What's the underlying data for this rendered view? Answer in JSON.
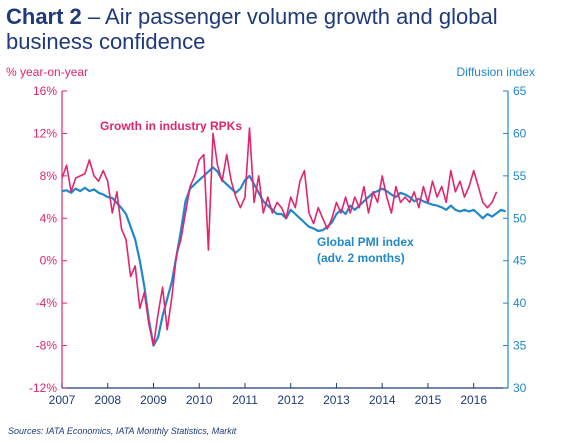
{
  "header": {
    "chart_number": "Chart 2",
    "title_rest": " – Air passenger volume growth and global business confidence"
  },
  "source": "Sources: IATA Economics, IATA Monthly Statistics, Markit",
  "colors": {
    "rpk": "#e0266f",
    "pmi": "#2188c9",
    "title": "#1f3a7a"
  },
  "chart_data": {
    "type": "line",
    "title": "Air passenger volume growth and global business confidence",
    "x_ticks": [
      "2007",
      "2008",
      "2009",
      "2010",
      "2011",
      "2012",
      "2013",
      "2014",
      "2015",
      "2016"
    ],
    "x_range": [
      2007.0,
      2016.75
    ],
    "left_axis": {
      "label": "% year-on-year",
      "range": [
        -12,
        16
      ],
      "ticks": [
        -12,
        -8,
        -4,
        0,
        4,
        8,
        12,
        16
      ],
      "tick_labels": [
        "-12%",
        "-8%",
        "-4%",
        "0%",
        "4%",
        "8%",
        "12%",
        "16%"
      ]
    },
    "right_axis": {
      "label": "Diffusion index",
      "range": [
        30,
        65
      ],
      "ticks": [
        30,
        35,
        40,
        45,
        50,
        55,
        60,
        65
      ],
      "tick_labels": [
        "30",
        "35",
        "40",
        "45",
        "50",
        "55",
        "60",
        "65"
      ]
    },
    "grid": false,
    "series": [
      {
        "name": "Growth in industry RPKs",
        "axis": "left",
        "x": [
          2007.0,
          2007.1,
          2007.2,
          2007.3,
          2007.4,
          2007.5,
          2007.6,
          2007.7,
          2007.8,
          2007.9,
          2008.0,
          2008.1,
          2008.2,
          2008.3,
          2008.4,
          2008.5,
          2008.6,
          2008.7,
          2008.8,
          2008.9,
          2009.0,
          2009.1,
          2009.2,
          2009.3,
          2009.4,
          2009.5,
          2009.6,
          2009.7,
          2009.8,
          2009.9,
          2010.0,
          2010.1,
          2010.2,
          2010.3,
          2010.4,
          2010.5,
          2010.6,
          2010.7,
          2010.8,
          2010.9,
          2011.0,
          2011.1,
          2011.2,
          2011.3,
          2011.4,
          2011.5,
          2011.6,
          2011.7,
          2011.8,
          2011.9,
          2012.0,
          2012.1,
          2012.2,
          2012.3,
          2012.4,
          2012.5,
          2012.6,
          2012.7,
          2012.8,
          2012.9,
          2013.0,
          2013.1,
          2013.2,
          2013.3,
          2013.4,
          2013.5,
          2013.6,
          2013.7,
          2013.8,
          2013.9,
          2014.0,
          2014.1,
          2014.2,
          2014.3,
          2014.4,
          2014.5,
          2014.6,
          2014.7,
          2014.8,
          2014.9,
          2015.0,
          2015.1,
          2015.2,
          2015.3,
          2015.4,
          2015.5,
          2015.6,
          2015.7,
          2015.8,
          2015.9,
          2016.0,
          2016.1,
          2016.2,
          2016.3,
          2016.4,
          2016.5
        ],
        "values": [
          7.8,
          9.0,
          6.5,
          7.8,
          8.0,
          8.2,
          9.5,
          8.0,
          7.5,
          8.5,
          7.5,
          4.5,
          6.5,
          3.0,
          2.0,
          -1.5,
          -0.5,
          -4.5,
          -3.0,
          -6.0,
          -8.0,
          -5.0,
          -2.5,
          -6.5,
          -3.5,
          0.5,
          2.0,
          4.5,
          7.0,
          8.0,
          9.5,
          10.0,
          1.0,
          12.0,
          9.0,
          7.5,
          10.0,
          7.5,
          6.0,
          5.0,
          6.0,
          12.5,
          5.5,
          8.0,
          4.5,
          6.0,
          4.5,
          5.5,
          5.0,
          4.0,
          6.0,
          5.0,
          7.5,
          8.5,
          4.5,
          3.5,
          5.0,
          4.0,
          3.0,
          4.0,
          5.5,
          4.5,
          6.0,
          4.5,
          6.0,
          5.0,
          7.0,
          4.5,
          6.5,
          5.5,
          8.0,
          6.0,
          4.5,
          7.0,
          5.5,
          6.0,
          5.5,
          6.5,
          5.0,
          7.0,
          5.5,
          7.5,
          6.0,
          7.0,
          5.5,
          8.5,
          6.5,
          7.5,
          6.0,
          7.0,
          8.5,
          7.0,
          5.5,
          5.0,
          5.5,
          6.5
        ]
      },
      {
        "name": "Global PMI index\n(adv. 2 months)",
        "axis": "right",
        "x": [
          2007.0,
          2007.1,
          2007.2,
          2007.3,
          2007.4,
          2007.5,
          2007.6,
          2007.7,
          2007.8,
          2007.9,
          2008.0,
          2008.1,
          2008.2,
          2008.3,
          2008.4,
          2008.5,
          2008.6,
          2008.7,
          2008.8,
          2008.9,
          2009.0,
          2009.1,
          2009.2,
          2009.3,
          2009.4,
          2009.5,
          2009.6,
          2009.7,
          2009.8,
          2009.9,
          2010.0,
          2010.1,
          2010.2,
          2010.3,
          2010.4,
          2010.5,
          2010.6,
          2010.7,
          2010.8,
          2010.9,
          2011.0,
          2011.1,
          2011.2,
          2011.3,
          2011.4,
          2011.5,
          2011.6,
          2011.7,
          2011.8,
          2011.9,
          2012.0,
          2012.1,
          2012.2,
          2012.3,
          2012.4,
          2012.5,
          2012.6,
          2012.7,
          2012.8,
          2012.9,
          2013.0,
          2013.1,
          2013.2,
          2013.3,
          2013.4,
          2013.5,
          2013.6,
          2013.7,
          2013.8,
          2013.9,
          2014.0,
          2014.1,
          2014.2,
          2014.3,
          2014.4,
          2014.5,
          2014.6,
          2014.7,
          2014.8,
          2014.9,
          2015.0,
          2015.1,
          2015.2,
          2015.3,
          2015.4,
          2015.5,
          2015.6,
          2015.7,
          2015.8,
          2015.9,
          2016.0,
          2016.1,
          2016.2,
          2016.3,
          2016.4,
          2016.5,
          2016.6,
          2016.7
        ],
        "values": [
          53.2,
          53.3,
          53.0,
          53.5,
          53.2,
          53.6,
          53.2,
          53.4,
          53.0,
          52.8,
          52.5,
          52.4,
          51.8,
          51.2,
          50.5,
          49.0,
          47.5,
          45.0,
          42.0,
          38.0,
          35.0,
          36.0,
          38.5,
          40.5,
          42.5,
          45.5,
          48.5,
          52.0,
          53.5,
          54.0,
          54.5,
          55.0,
          55.5,
          56.0,
          55.5,
          54.5,
          54.0,
          53.5,
          53.0,
          53.5,
          54.5,
          55.0,
          54.0,
          53.0,
          52.0,
          51.5,
          51.0,
          50.5,
          50.5,
          50.0,
          51.0,
          50.5,
          50.0,
          49.5,
          49.0,
          48.8,
          48.5,
          48.6,
          49.0,
          49.5,
          50.5,
          51.0,
          50.5,
          51.5,
          51.0,
          51.5,
          52.0,
          52.5,
          53.0,
          53.2,
          53.5,
          53.2,
          52.8,
          52.5,
          53.0,
          52.8,
          52.5,
          52.0,
          52.3,
          52.0,
          51.8,
          51.6,
          51.5,
          51.3,
          51.0,
          51.5,
          51.0,
          50.8,
          51.0,
          50.8,
          51.0,
          50.5,
          50.0,
          50.5,
          50.2,
          50.6,
          51.0,
          50.8
        ]
      }
    ]
  }
}
